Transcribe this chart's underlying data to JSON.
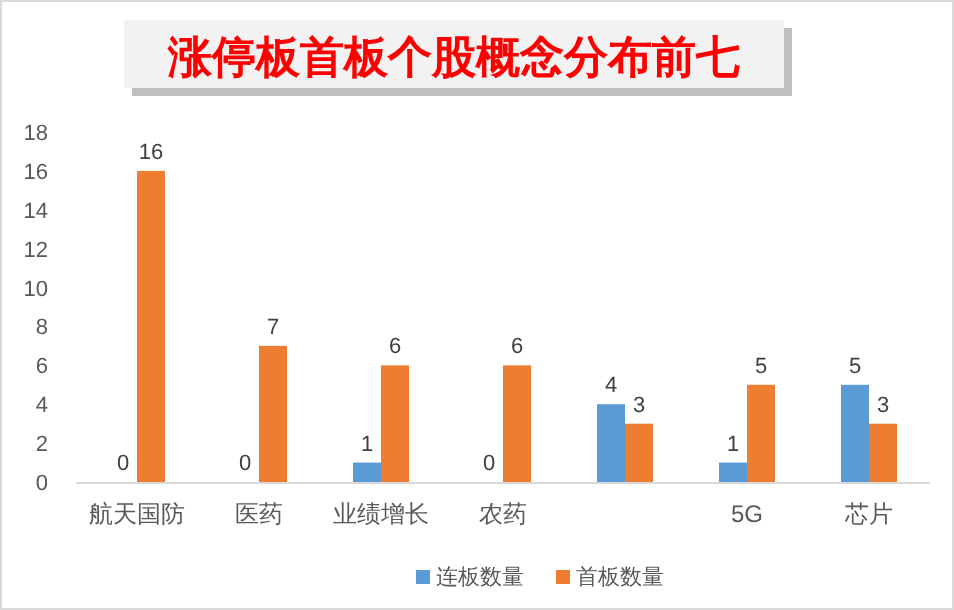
{
  "chart_data": {
    "type": "bar",
    "title": "涨停板首板个股概念分布前七",
    "categories": [
      "航天国防",
      "医药",
      "业绩增长",
      "农药",
      null,
      "5G",
      "芯片"
    ],
    "series": [
      {
        "name": "连板数量",
        "color": "#5b9bd5",
        "values": [
          0,
          0,
          1,
          0,
          4,
          1,
          5
        ]
      },
      {
        "name": "首板数量",
        "color": "#ed7d31",
        "values": [
          16,
          7,
          6,
          6,
          3,
          5,
          3
        ]
      }
    ],
    "ylim": [
      0,
      18
    ],
    "yticks": [
      0,
      2,
      4,
      6,
      8,
      10,
      12,
      14,
      16,
      18
    ],
    "data_labels": true,
    "legend": "bottom"
  }
}
